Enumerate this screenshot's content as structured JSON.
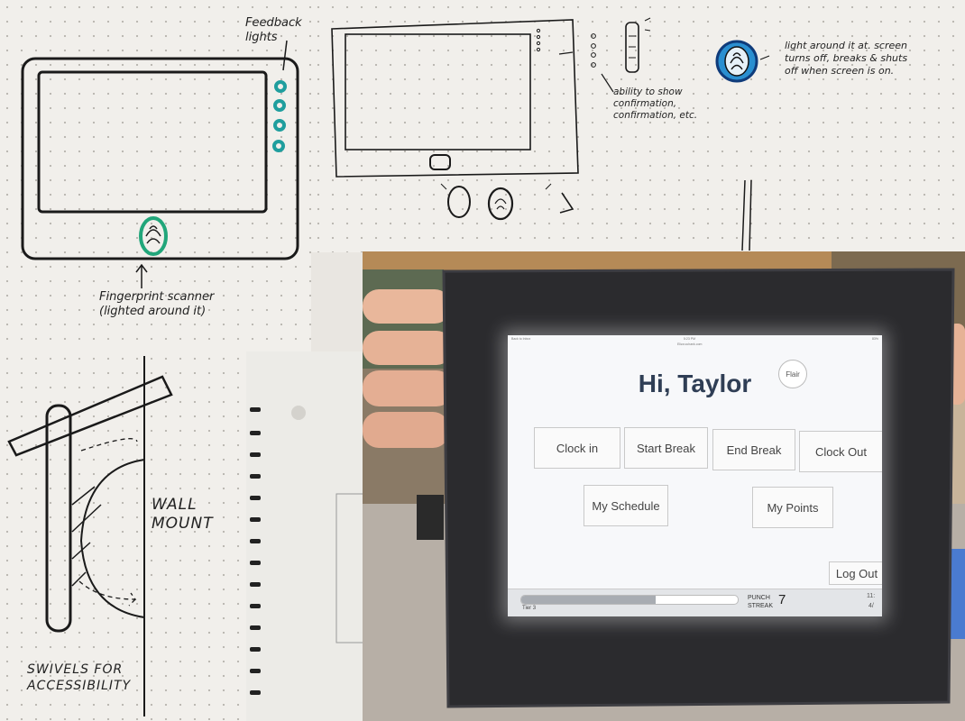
{
  "sketch_top_left": {
    "feedback_note": "Feedback lights",
    "scanner_note": "Fingerprint scanner (lighted around it)"
  },
  "sketch_top_right": {
    "status_note": "ability to show confirmation, confirmation, etc.",
    "light_note": "light around it at. screen turns off, breaks & shuts off when screen is on."
  },
  "sketch_bottom_left": {
    "wall_note": "WALL MOUNT",
    "swivel_note": "SWIVELS FOR ACCESSIBILITY"
  },
  "tablet": {
    "status_bar": {
      "back": "Back to Inbox",
      "time": "5:23 PM",
      "url": "Eliza.vuhank.com",
      "battery": "83%"
    },
    "greeting": "Hi, Taylor",
    "flair_label": "Flair",
    "buttons": {
      "clock_in": "Clock in",
      "start_break": "Start Break",
      "end_break": "End Break",
      "clock_out": "Clock Out",
      "my_schedule": "My Schedule",
      "my_points": "My Points",
      "log_out": "Log Out"
    },
    "footer": {
      "tier": "Tier 3",
      "progress": 0.62,
      "streak_label_1": "PUNCH",
      "streak_label_2": "STREAK",
      "streak_value": "7",
      "time_partial": "11:",
      "date_partial": "4/"
    }
  },
  "colors": {
    "feedback_light": "#1f9e9e",
    "scanner_light": "#21a67a",
    "blue_light": "#1b6fc2"
  }
}
